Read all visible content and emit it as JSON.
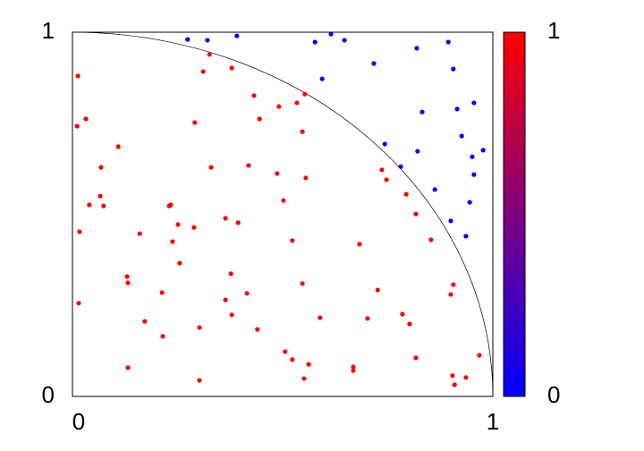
{
  "chart_data": {
    "type": "scatter",
    "xlim": [
      0,
      1
    ],
    "ylim": [
      0,
      1
    ],
    "xticks": [
      0,
      1
    ],
    "yticks": [
      0,
      1
    ],
    "series": [
      {
        "color": "#ff0000",
        "x": [
          0.013,
          0.032,
          0.011,
          0.109,
          0.068,
          0.066,
          0.04,
          0.074,
          0.017,
          0.015,
          0.13,
          0.132,
          0.16,
          0.23,
          0.234,
          0.238,
          0.251,
          0.255,
          0.289,
          0.213,
          0.172,
          0.215,
          0.302,
          0.302,
          0.132,
          0.326,
          0.311,
          0.379,
          0.291,
          0.33,
          0.432,
          0.445,
          0.491,
          0.534,
          0.553,
          0.547,
          0.419,
          0.487,
          0.555,
          0.502,
          0.364,
          0.394,
          0.523,
          0.377,
          0.415,
          0.364,
          0.379,
          0.44,
          0.547,
          0.589,
          0.683,
          0.726,
          0.702,
          0.506,
          0.523,
          0.562,
          0.551,
          0.668,
          0.668,
          0.785,
          0.802,
          0.817,
          0.736,
          0.747,
          0.794,
          0.817,
          0.853,
          0.906,
          0.9,
          0.904,
          0.936,
          0.909,
          0.968
        ],
        "y": [
          0.88,
          0.762,
          0.742,
          0.686,
          0.629,
          0.55,
          0.526,
          0.523,
          0.452,
          0.256,
          0.329,
          0.312,
          0.447,
          0.523,
          0.526,
          0.425,
          0.472,
          0.366,
          0.464,
          0.285,
          0.206,
          0.165,
          0.189,
          0.044,
          0.079,
          0.939,
          0.892,
          0.902,
          0.752,
          0.629,
          0.826,
          0.762,
          0.796,
          0.806,
          0.83,
          0.727,
          0.634,
          0.612,
          0.6,
          0.538,
          0.489,
          0.477,
          0.428,
          0.337,
          0.283,
          0.265,
          0.224,
          0.184,
          0.31,
          0.216,
          0.418,
          0.292,
          0.214,
          0.123,
          0.101,
          0.088,
          0.049,
          0.081,
          0.071,
          0.226,
          0.199,
          0.106,
          0.622,
          0.595,
          0.555,
          0.501,
          0.43,
          0.307,
          0.28,
          0.057,
          0.052,
          0.032,
          0.113
        ]
      },
      {
        "color": "#0000ff",
        "x": [
          0.274,
          0.321,
          0.391,
          0.577,
          0.615,
          0.647,
          0.594,
          0.717,
          0.819,
          0.894,
          0.906,
          0.832,
          0.915,
          0.955,
          0.926,
          0.977,
          0.743,
          0.821,
          0.781,
          0.951,
          0.955,
          0.862,
          0.945,
          0.9,
          0.936
        ],
        "y": [
          0.98,
          0.978,
          0.99,
          0.973,
          0.995,
          0.978,
          0.872,
          0.914,
          0.956,
          0.973,
          0.899,
          0.781,
          0.789,
          0.806,
          0.715,
          0.676,
          0.693,
          0.673,
          0.631,
          0.658,
          0.609,
          0.568,
          0.533,
          0.482,
          0.44
        ]
      }
    ],
    "colorbar": {
      "lim": [
        0,
        1
      ],
      "ticks": [
        0,
        1
      ],
      "colors": [
        "#0000ff",
        "#ff0000"
      ]
    }
  }
}
